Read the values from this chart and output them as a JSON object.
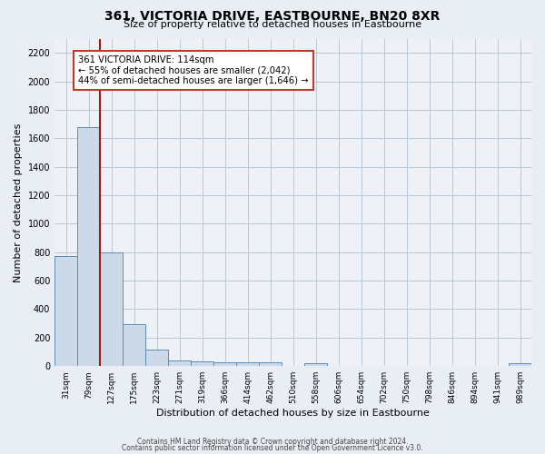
{
  "title": "361, VICTORIA DRIVE, EASTBOURNE, BN20 8XR",
  "subtitle": "Size of property relative to detached houses in Eastbourne",
  "xlabel": "Distribution of detached houses by size in Eastbourne",
  "ylabel": "Number of detached properties",
  "footer_line1": "Contains HM Land Registry data © Crown copyright and database right 2024.",
  "footer_line2": "Contains public sector information licensed under the Open Government Licence v3.0.",
  "bin_labels": [
    "31sqm",
    "79sqm",
    "127sqm",
    "175sqm",
    "223sqm",
    "271sqm",
    "319sqm",
    "366sqm",
    "414sqm",
    "462sqm",
    "510sqm",
    "558sqm",
    "606sqm",
    "654sqm",
    "702sqm",
    "750sqm",
    "798sqm",
    "846sqm",
    "894sqm",
    "941sqm",
    "989sqm"
  ],
  "bar_values": [
    775,
    1680,
    800,
    295,
    113,
    38,
    32,
    28,
    27,
    25,
    0,
    22,
    0,
    0,
    0,
    0,
    0,
    0,
    0,
    0,
    22
  ],
  "bar_color": "#ccd9e8",
  "bar_edge_color": "#5b8db8",
  "vline_x": 1.5,
  "vline_color": "#9b1c1c",
  "annotation_title": "361 VICTORIA DRIVE: 114sqm",
  "annotation_line2": "← 55% of detached houses are smaller (2,042)",
  "annotation_line3": "44% of semi-detached houses are larger (1,646) →",
  "annotation_box_edge": "#c0392b",
  "ylim": [
    0,
    2300
  ],
  "yticks": [
    0,
    200,
    400,
    600,
    800,
    1000,
    1200,
    1400,
    1600,
    1800,
    2000,
    2200
  ],
  "background_color": "#e8eef4",
  "plot_background": "#eef2f7",
  "grid_color": "#b8c8d8",
  "title_fontsize": 10,
  "subtitle_fontsize": 8,
  "xlabel_fontsize": 8,
  "ylabel_fontsize": 8,
  "tick_fontsize": 7,
  "xtick_fontsize": 6.5,
  "footer_fontsize": 5.5
}
